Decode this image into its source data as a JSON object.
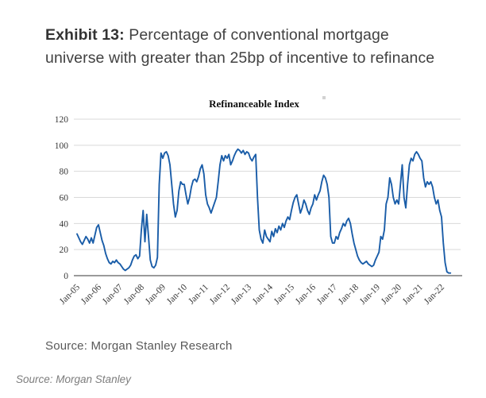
{
  "exhibit": {
    "label": "Exhibit 13:",
    "title_line1": " Percentage of conventional mortgage",
    "title_line2": "universe with greater than 25bp of incentive to refinance"
  },
  "source_note": "Source: Morgan Stanley Research",
  "footer_source": "Source: Morgan Stanley",
  "chart_data": {
    "type": "line",
    "title": "Refinanceable Index",
    "xlabel": "",
    "ylabel": "",
    "ylim": [
      0,
      120
    ],
    "y_ticks": [
      0,
      20,
      40,
      60,
      80,
      100,
      120
    ],
    "grid": "horizontal",
    "legend": "none",
    "line_color": "#1a5da8",
    "grid_color": "#d9d9d9",
    "axis_color": "#9a9a9a",
    "x_unit": "monthly, Jan-2005 through Jun-2022",
    "x_tick_labels": [
      "Jan-05",
      "Jan-06",
      "Jan-07",
      "Jan-08",
      "Jan-09",
      "Jan-10",
      "Jan-11",
      "Jan-12",
      "Jan-13",
      "Jan-14",
      "Jan-15",
      "Jan-16",
      "Jan-17",
      "Jan-18",
      "Jan-19",
      "Jan-20",
      "Jan-21",
      "Jan-22"
    ],
    "series": [
      {
        "name": "Refinanceable Index",
        "monthly_values": [
          32,
          29,
          26,
          24,
          27,
          30,
          28,
          25,
          29,
          25,
          31,
          37,
          39,
          33,
          27,
          23,
          17,
          13,
          10,
          9,
          11,
          10,
          12,
          10,
          9,
          7,
          5,
          4,
          5,
          6,
          8,
          12,
          15,
          16,
          13,
          15,
          35,
          50,
          26,
          47,
          30,
          12,
          7,
          6,
          8,
          14,
          70,
          94,
          90,
          94,
          95,
          92,
          85,
          70,
          55,
          45,
          50,
          65,
          72,
          70,
          70,
          62,
          55,
          60,
          68,
          73,
          74,
          72,
          76,
          82,
          85,
          78,
          62,
          55,
          52,
          48,
          52,
          56,
          60,
          72,
          85,
          92,
          88,
          92,
          90,
          93,
          85,
          88,
          92,
          95,
          97,
          96,
          94,
          96,
          93,
          95,
          94,
          90,
          88,
          91,
          93,
          60,
          35,
          28,
          25,
          35,
          30,
          28,
          26,
          34,
          30,
          36,
          33,
          38,
          35,
          40,
          37,
          42,
          45,
          43,
          50,
          56,
          60,
          62,
          55,
          48,
          52,
          58,
          55,
          50,
          47,
          52,
          55,
          62,
          58,
          62,
          65,
          72,
          77,
          75,
          70,
          60,
          30,
          25,
          25,
          30,
          28,
          33,
          36,
          40,
          38,
          42,
          44,
          40,
          32,
          25,
          20,
          15,
          12,
          10,
          9,
          10,
          11,
          9,
          8,
          7,
          8,
          12,
          15,
          18,
          30,
          28,
          35,
          55,
          60,
          75,
          70,
          60,
          55,
          58,
          55,
          70,
          85,
          60,
          52,
          70,
          85,
          90,
          88,
          93,
          95,
          93,
          90,
          88,
          75,
          68,
          72,
          70,
          72,
          68,
          60,
          55,
          58,
          50,
          45,
          25,
          10,
          3,
          2,
          2
        ]
      }
    ]
  }
}
